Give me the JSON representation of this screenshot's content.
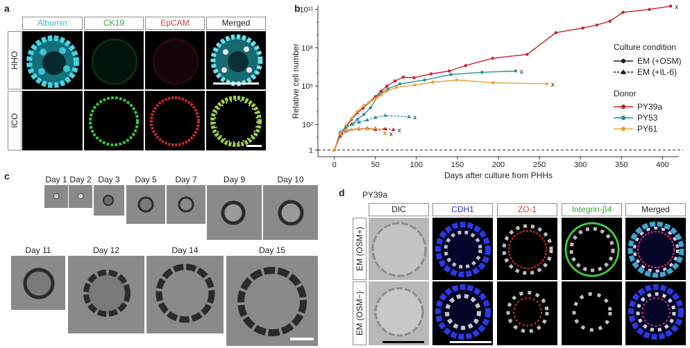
{
  "panels": {
    "a": "a",
    "b": "b",
    "c": "c",
    "d": "d"
  },
  "panel_a": {
    "columns": [
      "Albumin",
      "CK19",
      "EpCAM",
      "Merged"
    ],
    "column_colors": [
      "#3fb7c8",
      "#3aa93a",
      "#d63a3a",
      "#222222"
    ],
    "rows": [
      "HHO",
      "ICO"
    ]
  },
  "panel_c": {
    "days": [
      "Day 1",
      "Day 2",
      "Day 3",
      "Day 5",
      "Day 7",
      "Day 9",
      "Day 10",
      "Day 11",
      "Day 12",
      "Day 14",
      "Day 15"
    ]
  },
  "panel_d": {
    "donor": "PY39a",
    "columns": [
      "DIC",
      "CDH1",
      "ZO-1",
      "Integrin-β4",
      "Merged"
    ],
    "column_colors": [
      "#222222",
      "#2a35c8",
      "#d63a3a",
      "#3aa93a",
      "#222222"
    ],
    "rows": [
      "EM (OSM+)",
      "EM (OSM−)"
    ]
  },
  "chart_data": {
    "type": "line",
    "xlabel": "Days after culture from PHHs",
    "ylabel": "Relative cell number",
    "x_ticks": [
      0,
      50,
      100,
      150,
      200,
      250,
      300,
      350,
      400
    ],
    "xlim": [
      -20,
      420
    ],
    "y_scale": "log",
    "y_ticks": [
      {
        "value": 1,
        "label": "1"
      },
      {
        "value": 100,
        "label": "10²"
      },
      {
        "value": 100000,
        "label": "10⁵"
      },
      {
        "value": 100000000,
        "label": "10⁸"
      },
      {
        "value": 100000000000,
        "label": "10¹¹"
      }
    ],
    "ylim": [
      0.3,
      200000000000.0
    ],
    "reference_line": {
      "y": 1,
      "style": "dashed"
    },
    "legend": {
      "condition_title": "Culture condition",
      "condition_items": [
        {
          "label": "EM (+OSM)",
          "style": "solid",
          "marker": "circle"
        },
        {
          "label": "EM (+IL-6)",
          "style": "dashed",
          "marker": "triangle"
        }
      ],
      "donor_title": "Donor",
      "donor_items": [
        {
          "label": "PY39a",
          "color": "#c8202a"
        },
        {
          "label": "PY53",
          "color": "#2a8f96"
        },
        {
          "label": "PY61",
          "color": "#e8a23a"
        }
      ],
      "placement": "right"
    },
    "end_marker": "x",
    "series": [
      {
        "name": "PY39a",
        "condition": "EM (+OSM)",
        "color": "#c8202a",
        "x": [
          0,
          7,
          14,
          21,
          28,
          35,
          42,
          50,
          57,
          64,
          74,
          84,
          97,
          118,
          140,
          160,
          193,
          235,
          270,
          303,
          320,
          336,
          352,
          384,
          410
        ],
        "y": [
          1,
          12,
          60,
          250,
          800,
          1800,
          5000,
          15000,
          40000,
          100000,
          250000,
          500000,
          450000,
          900000,
          1500000,
          4000000,
          15000000,
          30000000,
          1500000000,
          3500000000,
          6000000000,
          12000000000,
          60000000000,
          100000000000,
          180000000000
        ]
      },
      {
        "name": "PY53",
        "condition": "EM (+OSM)",
        "color": "#2a8f96",
        "x": [
          0,
          7,
          14,
          22,
          28,
          36,
          44,
          54,
          65,
          80,
          110,
          142,
          180,
          221
        ],
        "y": [
          1,
          20,
          60,
          100,
          250,
          600,
          2000,
          20000,
          60000,
          150000,
          300000,
          800000,
          1200000,
          1500000
        ]
      },
      {
        "name": "PY61",
        "condition": "EM (+OSM)",
        "color": "#e8a23a",
        "x": [
          0,
          7,
          14,
          21,
          28,
          36,
          42,
          50,
          57,
          64,
          76,
          98,
          120,
          149,
          194,
          259
        ],
        "y": [
          1,
          15,
          80,
          300,
          1000,
          3000,
          5000,
          10000,
          20000,
          40000,
          80000,
          120000,
          200000,
          300000,
          180000,
          150000
        ]
      },
      {
        "name": "PY39a",
        "condition": "EM (+IL-6)",
        "color": "#c8202a",
        "x": [
          0,
          7,
          14,
          21,
          30,
          40,
          50,
          62,
          72
        ],
        "y": [
          1,
          12,
          30,
          40,
          45,
          50,
          40,
          45,
          40
        ]
      },
      {
        "name": "PY53",
        "condition": "EM (+IL-6)",
        "color": "#2a8f96",
        "x": [
          0,
          7,
          14,
          21,
          30,
          40,
          50,
          62,
          91
        ],
        "y": [
          1,
          25,
          60,
          110,
          150,
          220,
          350,
          500,
          400
        ]
      },
      {
        "name": "PY61",
        "condition": "EM (+IL-6)",
        "color": "#e8a23a",
        "x": [
          0,
          7,
          14,
          21,
          30,
          40,
          50,
          62
        ],
        "y": [
          1,
          20,
          35,
          40,
          50,
          45,
          55,
          20
        ]
      }
    ]
  }
}
